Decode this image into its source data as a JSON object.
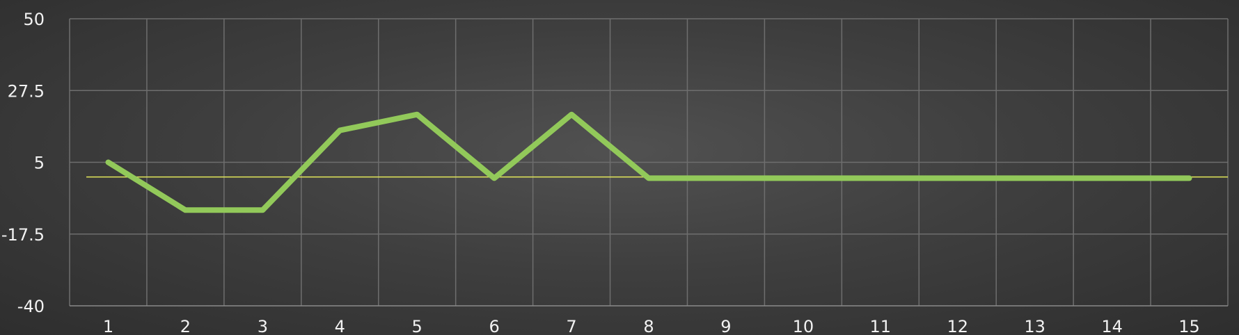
{
  "chart_data": {
    "type": "line",
    "categories": [
      "1",
      "2",
      "3",
      "4",
      "5",
      "6",
      "7",
      "8",
      "9",
      "10",
      "11",
      "12",
      "13",
      "14",
      "15"
    ],
    "series": [
      {
        "values": [
          5,
          -10,
          -10,
          15,
          20,
          0,
          20,
          0,
          0,
          0,
          0,
          0,
          0,
          0,
          0
        ],
        "color": "#92c95a"
      }
    ],
    "reference_line": {
      "value": 0.4,
      "color": "#e3e85a"
    },
    "ylim": [
      -40,
      50
    ],
    "yticks": [
      "50",
      "27.5",
      "5",
      "-17.5",
      "-40"
    ],
    "grid": true,
    "title": "",
    "xlabel": "",
    "ylabel": ""
  }
}
